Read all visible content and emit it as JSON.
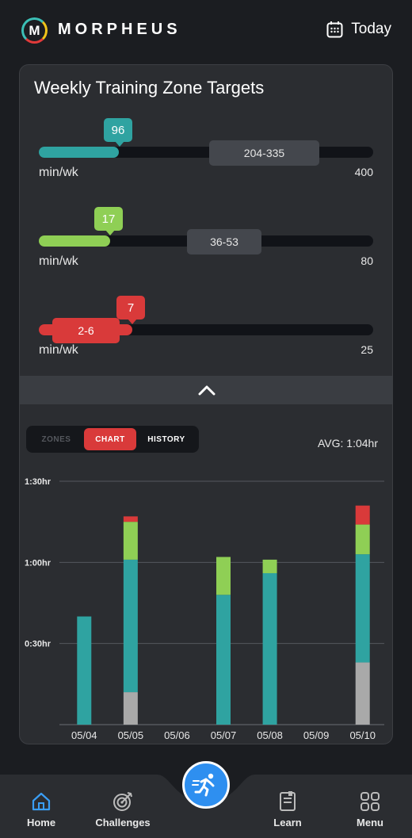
{
  "app": {
    "name": "MORPHEUS",
    "logo_letter": "M",
    "date_label": "Today"
  },
  "card": {
    "title": "Weekly Training Zone Targets",
    "zones": [
      {
        "current": "96",
        "target": "204-335",
        "unit": "min/wk",
        "max": "400",
        "color": "#2fa3a1",
        "level": 0.24,
        "target_range": [
          204,
          335
        ],
        "max_value": 400
      },
      {
        "current": "17",
        "target": "36-53",
        "unit": "min/wk",
        "max": "80",
        "color": "#8fcf55",
        "level": 0.21,
        "target_range": [
          36,
          53
        ],
        "max_value": 80
      },
      {
        "current": "7",
        "target": "2-6",
        "unit": "min/wk",
        "max": "25",
        "color": "#d93a3a",
        "level": 0.28,
        "target_range": [
          2,
          6
        ],
        "max_value": 25
      }
    ]
  },
  "tabs": {
    "zones": "ZONES",
    "chart": "CHART",
    "history": "HISTORY",
    "active": "chart"
  },
  "avg_label": "AVG: 1:04hr",
  "chart_data": {
    "type": "bar",
    "stacked": true,
    "categories": [
      "05/04",
      "05/05",
      "05/06",
      "05/07",
      "05/08",
      "05/09",
      "05/10"
    ],
    "y_ticks": [
      "0:30hr",
      "1:00hr",
      "1:30hr"
    ],
    "y_tick_values": [
      30,
      60,
      90
    ],
    "ylim": [
      0,
      90
    ],
    "grid": true,
    "series": [
      {
        "color": "#a9a9a9",
        "values": [
          0,
          12,
          0,
          0,
          0,
          0,
          23
        ]
      },
      {
        "color": "#2fa3a1",
        "values": [
          40,
          49,
          0,
          48,
          56,
          0,
          40
        ]
      },
      {
        "color": "#8fcf55",
        "values": [
          0,
          14,
          0,
          14,
          5,
          0,
          11
        ]
      },
      {
        "color": "#d93a3a",
        "values": [
          0,
          2,
          0,
          0,
          0,
          0,
          7
        ]
      }
    ]
  },
  "nav": {
    "items": [
      {
        "label": "Home",
        "icon": "home-icon"
      },
      {
        "label": "Challenges",
        "icon": "target-icon"
      },
      {
        "label": "Learn",
        "icon": "book-icon"
      },
      {
        "label": "Menu",
        "icon": "grid-icon"
      }
    ],
    "fab_icon": "runner-icon"
  }
}
